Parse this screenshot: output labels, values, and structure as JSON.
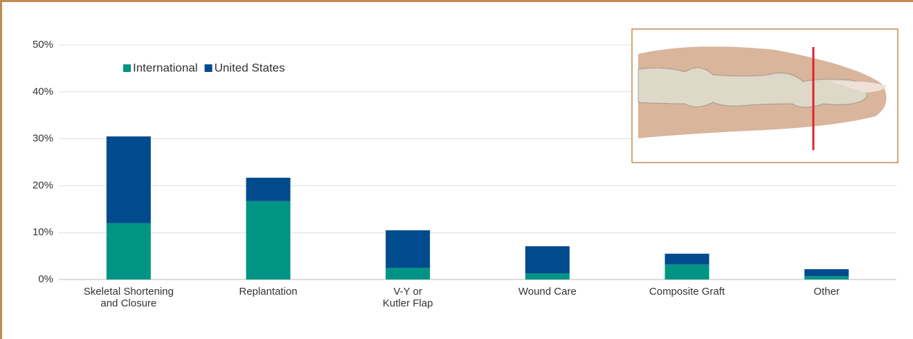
{
  "chart_data": {
    "type": "stacked_bar",
    "categories": [
      "Skeletal Shortening\nand Closure",
      "Replantation",
      "V-Y or\nKutler Flap",
      "Wound Care",
      "Composite Graft",
      "Other"
    ],
    "series": [
      {
        "name": "International",
        "color": "#009485",
        "values": [
          12,
          16.7,
          2.5,
          1.3,
          3.2,
          0.7
        ]
      },
      {
        "name": "United States",
        "color": "#004b8d",
        "values": [
          18.5,
          5.0,
          8.0,
          5.8,
          2.3,
          1.5
        ]
      }
    ],
    "ylim": [
      0,
      50
    ],
    "yticks": [
      {
        "value": 0,
        "label": "0%"
      },
      {
        "value": 10,
        "label": "10%"
      },
      {
        "value": 20,
        "label": "20%"
      },
      {
        "value": 30,
        "label": "30%"
      },
      {
        "value": 40,
        "label": "40%"
      },
      {
        "value": 50,
        "label": "50%"
      }
    ],
    "grid": true
  }
}
